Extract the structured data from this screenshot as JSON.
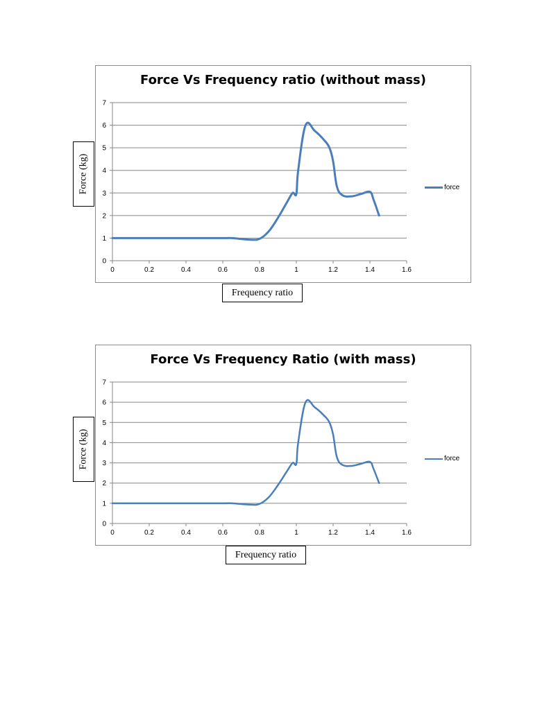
{
  "chart_data": [
    {
      "type": "line",
      "title": "Force Vs Frequency ratio (without mass)",
      "xlabel": "Frequency ratio",
      "ylabel": "Force (kg)",
      "xlim": [
        0,
        1.6
      ],
      "ylim": [
        0,
        7
      ],
      "x_ticks": [
        "0",
        "0.2",
        "0.4",
        "0.6",
        "0.8",
        "1",
        "1.2",
        "1.4",
        "1.6"
      ],
      "y_ticks": [
        "0",
        "1",
        "2",
        "3",
        "4",
        "5",
        "6",
        "7"
      ],
      "grid": "horizontal",
      "legend": "right",
      "series": [
        {
          "name": "force",
          "color": "#4a7ebb",
          "x": [
            0,
            0.2,
            0.4,
            0.6,
            0.65,
            0.75,
            0.8,
            0.85,
            0.9,
            0.95,
            0.98,
            1.0,
            1.01,
            1.05,
            1.1,
            1.15,
            1.18,
            1.2,
            1.22,
            1.25,
            1.3,
            1.35,
            1.4,
            1.42,
            1.45
          ],
          "values": [
            1,
            1,
            1,
            1,
            1,
            0.93,
            0.97,
            1.3,
            1.9,
            2.6,
            3.0,
            2.95,
            4.0,
            6.0,
            5.75,
            5.35,
            5.0,
            4.4,
            3.3,
            2.9,
            2.85,
            2.95,
            3.05,
            2.7,
            2.0
          ]
        }
      ]
    },
    {
      "type": "line",
      "title": "Force Vs Frequency Ratio (with mass)",
      "xlabel": "Frequency ratio",
      "ylabel": "Force (kg)",
      "xlim": [
        0,
        1.6
      ],
      "ylim": [
        0,
        7
      ],
      "x_ticks": [
        "0",
        "0.2",
        "0.4",
        "0.6",
        "0.8",
        "1",
        "1.2",
        "1.4",
        "1.6"
      ],
      "y_ticks": [
        "0",
        "1",
        "2",
        "3",
        "4",
        "5",
        "6",
        "7"
      ],
      "grid": "horizontal",
      "legend": "right",
      "series": [
        {
          "name": "force",
          "color": "#4a7ebb",
          "x": [
            0,
            0.2,
            0.4,
            0.6,
            0.65,
            0.75,
            0.8,
            0.85,
            0.9,
            0.95,
            0.98,
            1.0,
            1.01,
            1.05,
            1.1,
            1.15,
            1.18,
            1.2,
            1.22,
            1.25,
            1.3,
            1.35,
            1.4,
            1.42,
            1.45
          ],
          "values": [
            1,
            1,
            1,
            1,
            1,
            0.93,
            0.97,
            1.3,
            1.9,
            2.6,
            3.0,
            2.95,
            4.0,
            6.0,
            5.75,
            5.35,
            5.0,
            4.4,
            3.3,
            2.9,
            2.85,
            2.95,
            3.05,
            2.7,
            2.0
          ]
        }
      ]
    }
  ]
}
